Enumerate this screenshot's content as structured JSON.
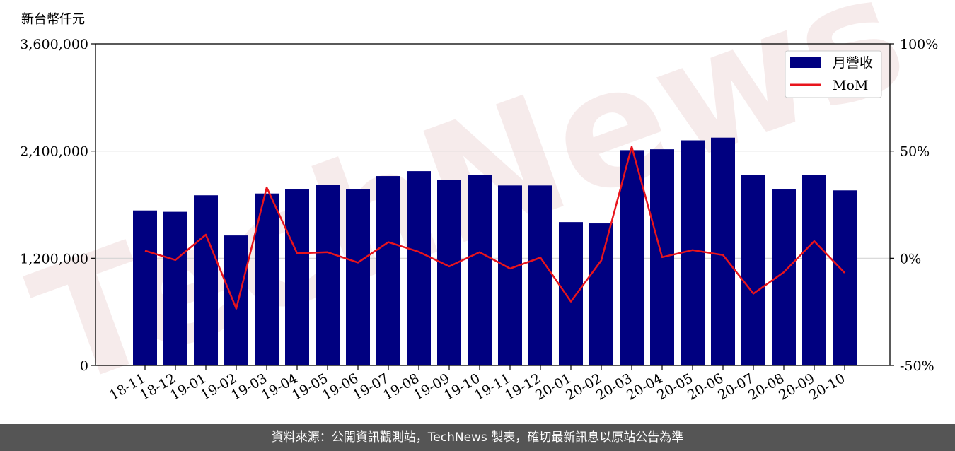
{
  "chart_data": {
    "type": "bar",
    "unit_label": "新台幣仟元",
    "categories": [
      "18-11",
      "18-12",
      "19-01",
      "19-02",
      "19-03",
      "19-04",
      "19-05",
      "19-06",
      "19-07",
      "19-08",
      "19-09",
      "19-10",
      "19-11",
      "19-12",
      "20-01",
      "20-02",
      "20-03",
      "20-04",
      "20-05",
      "20-06",
      "20-07",
      "20-08",
      "20-09",
      "20-10"
    ],
    "series": [
      {
        "name": "月營收",
        "axis": "left",
        "type": "bar",
        "color": "#000080",
        "values": [
          1735000,
          1720000,
          1905000,
          1455000,
          1925000,
          1970000,
          2020000,
          1970000,
          2120000,
          2175000,
          2080000,
          2130000,
          2015000,
          2015000,
          1605000,
          1590000,
          2410000,
          2420000,
          2520000,
          2550000,
          2130000,
          1970000,
          2130000,
          1960000
        ]
      },
      {
        "name": "MoM",
        "axis": "right",
        "type": "line",
        "color": "#e8141c",
        "values": [
          3.5,
          -0.8,
          11.0,
          -23.5,
          33.0,
          2.3,
          2.8,
          -2.0,
          7.5,
          3.0,
          -3.8,
          2.8,
          -4.8,
          0.3,
          -20.2,
          -1.0,
          52.0,
          0.5,
          3.8,
          1.5,
          -16.5,
          -6.5,
          8.0,
          -6.8
        ]
      }
    ],
    "y_left": {
      "ylim": [
        0,
        3600000
      ],
      "ticks": [
        0,
        1200000,
        2400000,
        3600000
      ],
      "tick_labels": [
        "0",
        "1,200,000",
        "2,400,000",
        "3,600,000"
      ]
    },
    "y_right": {
      "ylim": [
        -50,
        100
      ],
      "ticks": [
        -50,
        0,
        50,
        100
      ],
      "tick_labels": [
        "-50%",
        "0%",
        "50%",
        "100%"
      ]
    },
    "grid": "horizontal",
    "legend": "top-right"
  },
  "watermark": "TechNews",
  "footer_text": "資料來源：公開資訊觀測站，TechNews 製表，確切最新訊息以原站公告為準"
}
